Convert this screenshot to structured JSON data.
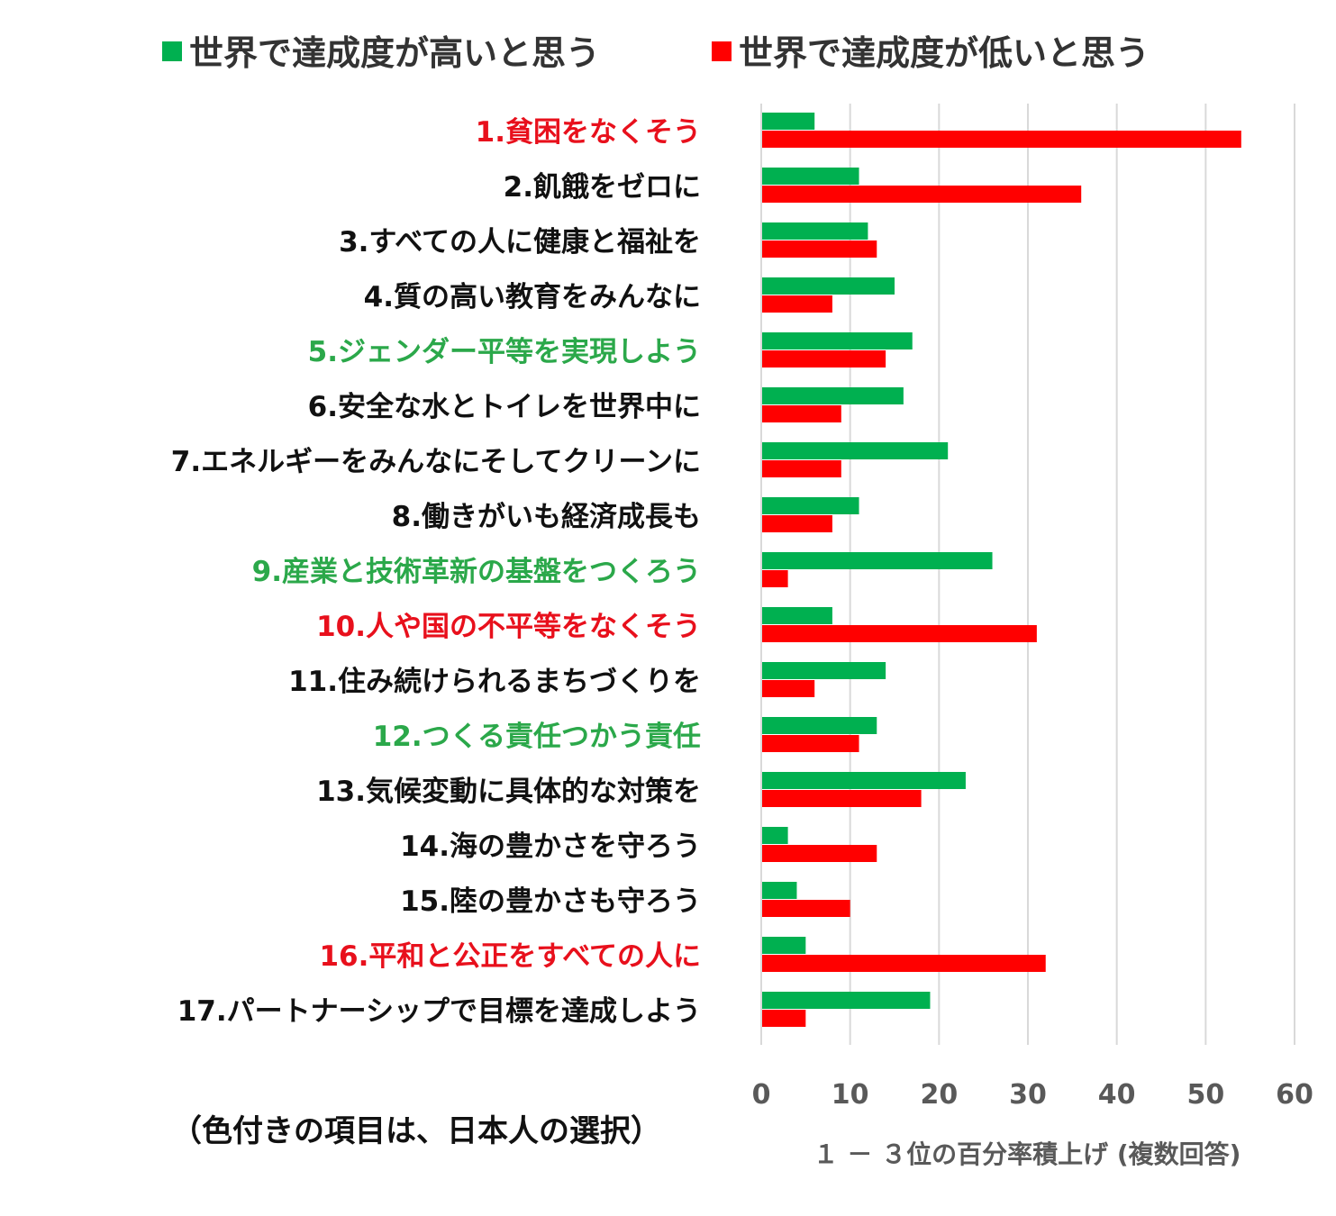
{
  "legend": {
    "high_label": "世界で達成度が高いと思う",
    "low_label": "世界で達成度が低いと思う"
  },
  "note": "（色付きの項目は、日本人の選択）",
  "colors": {
    "high": "#00B050",
    "low": "#FF0000",
    "label_default": "#111111",
    "label_red": "#E8101C",
    "label_green": "#2BA84A",
    "grid": "#D9D9D9",
    "tick": "#595959"
  },
  "chart_data": {
    "type": "bar",
    "orientation": "horizontal",
    "categories": [
      "1.貧困をなくそう",
      "2.飢餓をゼロに",
      "3.すべての人に健康と福祉を",
      "4.質の高い教育をみんなに",
      "5.ジェンダー平等を実現しよう",
      "6.安全な水とトイレを世界中に",
      "7.エネルギーをみんなにそしてクリーンに",
      "8.働きがいも経済成長も",
      "9.産業と技術革新の基盤をつくろう",
      "10.人や国の不平等をなくそう",
      "11.住み続けられるまちづくりを",
      "12.つくる責任つかう責任",
      "13.気候変動に具体的な対策を",
      "14.海の豊かさを守ろう",
      "15.陸の豊かさも守ろう",
      "16.平和と公正をすべての人に",
      "17.パートナーシップで目標を達成しよう"
    ],
    "category_highlight": [
      "red",
      "none",
      "none",
      "none",
      "green",
      "none",
      "none",
      "none",
      "green",
      "red",
      "none",
      "green",
      "none",
      "none",
      "none",
      "red",
      "none"
    ],
    "series": [
      {
        "name": "世界で達成度が高いと思う",
        "color": "#00B050",
        "values": [
          6,
          11,
          12,
          15,
          17,
          16,
          21,
          11,
          26,
          8,
          14,
          13,
          23,
          3,
          4,
          5,
          19
        ]
      },
      {
        "name": "世界で達成度が低いと思う",
        "color": "#FF0000",
        "values": [
          54,
          36,
          13,
          8,
          14,
          9,
          9,
          8,
          3,
          31,
          6,
          11,
          18,
          13,
          10,
          32,
          5
        ]
      }
    ],
    "xlim": [
      0,
      60
    ],
    "xticks": [
      0,
      10,
      20,
      30,
      40,
      50,
      60
    ],
    "xlabel": "１ － ３位の百分率積上げ (複数回答)",
    "grid": true,
    "legend_position": "top"
  }
}
